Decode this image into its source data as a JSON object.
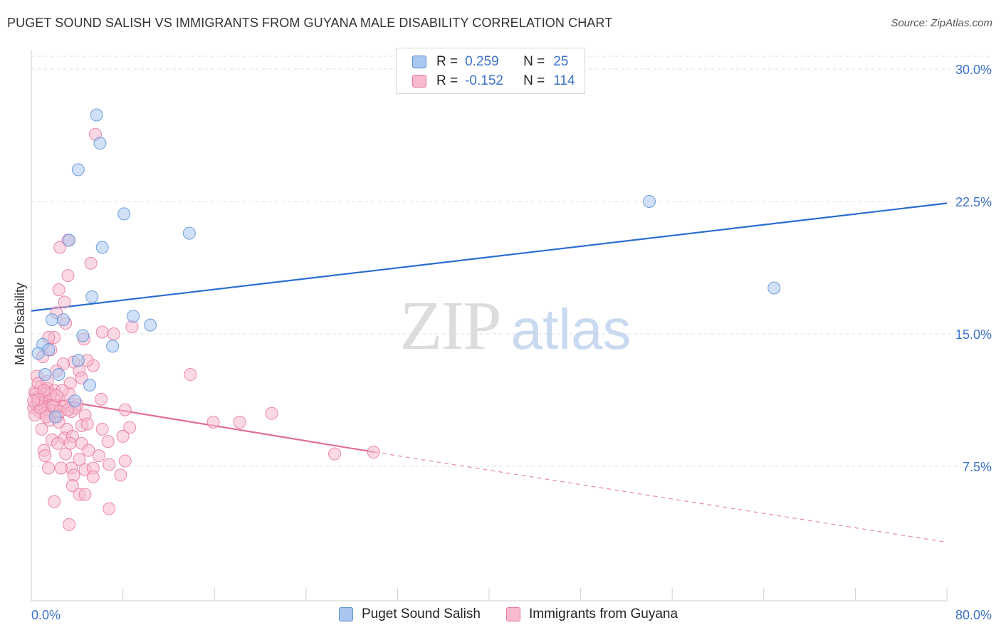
{
  "header": {
    "title": "PUGET SOUND SALISH VS IMMIGRANTS FROM GUYANA MALE DISABILITY CORRELATION CHART",
    "source": "Source: ZipAtlas.com"
  },
  "watermark": {
    "zip": "ZIP",
    "atlas": "atlas"
  },
  "legend": {
    "rows": [
      {
        "r_label": "R =",
        "r_value": "0.259",
        "n_label": "N =",
        "n_value": "25",
        "color": "#a9c6ef",
        "border": "#5b8fd6"
      },
      {
        "r_label": "R =",
        "r_value": "-0.152",
        "n_label": "N =",
        "n_value": "114",
        "color": "#f6b9cd",
        "border": "#e8779d"
      }
    ]
  },
  "chart_data": {
    "type": "scatter",
    "ylabel": "Male Disability",
    "x_ticks": [
      "0.0%",
      "80.0%"
    ],
    "y_ticks": [
      "7.5%",
      "15.0%",
      "22.5%",
      "30.0%"
    ],
    "xlim": [
      0,
      80
    ],
    "ylim": [
      0,
      30.5
    ],
    "grid": true,
    "series": [
      {
        "name": "Puget Sound Salish",
        "color": "#a9c6ef",
        "stroke": "#5b8fd6",
        "line_color": "#2a6dd0",
        "trend": {
          "x0": 0,
          "y0": 16.3,
          "x1": 80,
          "y1": 22.4,
          "dashed_to": null
        },
        "points": [
          [
            5.7,
            27.4
          ],
          [
            6.0,
            25.8
          ],
          [
            4.1,
            24.3
          ],
          [
            8.1,
            21.8
          ],
          [
            13.8,
            20.7
          ],
          [
            6.2,
            19.9
          ],
          [
            3.3,
            20.3
          ],
          [
            5.3,
            17.1
          ],
          [
            8.9,
            16.0
          ],
          [
            10.4,
            15.5
          ],
          [
            1.8,
            15.8
          ],
          [
            2.8,
            15.8
          ],
          [
            4.5,
            14.9
          ],
          [
            1.0,
            14.4
          ],
          [
            7.1,
            14.3
          ],
          [
            1.5,
            14.1
          ],
          [
            0.6,
            13.9
          ],
          [
            4.1,
            13.5
          ],
          [
            2.4,
            12.7
          ],
          [
            1.2,
            12.7
          ],
          [
            5.1,
            12.1
          ],
          [
            2.1,
            10.3
          ],
          [
            54.0,
            22.5
          ],
          [
            64.9,
            17.6
          ],
          [
            3.8,
            11.2
          ]
        ]
      },
      {
        "name": "Immigrants from Guyana",
        "color": "#f6b9cd",
        "stroke": "#e8779d",
        "line_color": "#e06e96",
        "trend": {
          "x0": 0,
          "y0": 11.5,
          "x1": 30,
          "y1": 8.3,
          "dashed_to": {
            "x": 80,
            "y": 3.2
          }
        },
        "points": [
          [
            5.6,
            26.3
          ],
          [
            3.2,
            20.3
          ],
          [
            2.5,
            19.9
          ],
          [
            5.2,
            19.0
          ],
          [
            3.2,
            18.3
          ],
          [
            2.4,
            17.5
          ],
          [
            2.9,
            16.8
          ],
          [
            2.2,
            16.2
          ],
          [
            3.0,
            15.6
          ],
          [
            8.8,
            15.4
          ],
          [
            6.2,
            15.1
          ],
          [
            7.2,
            15.0
          ],
          [
            2.0,
            14.8
          ],
          [
            1.5,
            14.8
          ],
          [
            4.6,
            14.7
          ],
          [
            1.7,
            14.1
          ],
          [
            1.0,
            13.7
          ],
          [
            3.7,
            13.4
          ],
          [
            2.8,
            13.3
          ],
          [
            5.4,
            13.2
          ],
          [
            4.9,
            13.5
          ],
          [
            2.2,
            12.9
          ],
          [
            4.2,
            12.9
          ],
          [
            0.5,
            12.6
          ],
          [
            13.9,
            12.7
          ],
          [
            4.4,
            12.5
          ],
          [
            3.4,
            12.2
          ],
          [
            0.8,
            12.0
          ],
          [
            1.4,
            11.9
          ],
          [
            2.0,
            11.8
          ],
          [
            0.3,
            11.7
          ],
          [
            1.1,
            11.6
          ],
          [
            1.6,
            11.5
          ],
          [
            0.5,
            11.4
          ],
          [
            3.3,
            11.6
          ],
          [
            0.9,
            11.3
          ],
          [
            1.3,
            11.2
          ],
          [
            0.6,
            11.1
          ],
          [
            1.8,
            11.0
          ],
          [
            2.6,
            11.0
          ],
          [
            0.4,
            11.0
          ],
          [
            1.0,
            10.9
          ],
          [
            0.2,
            10.8
          ],
          [
            1.5,
            10.8
          ],
          [
            2.1,
            10.9
          ],
          [
            6.1,
            11.3
          ],
          [
            4.0,
            11.0
          ],
          [
            2.9,
            10.9
          ],
          [
            3.5,
            10.6
          ],
          [
            0.7,
            10.6
          ],
          [
            1.2,
            10.5
          ],
          [
            8.2,
            10.7
          ],
          [
            0.3,
            10.4
          ],
          [
            2.3,
            10.3
          ],
          [
            4.7,
            10.4
          ],
          [
            1.6,
            10.1
          ],
          [
            2.4,
            10.0
          ],
          [
            15.9,
            10.0
          ],
          [
            18.2,
            10.0
          ],
          [
            21.0,
            10.5
          ],
          [
            4.4,
            9.8
          ],
          [
            8.6,
            9.7
          ],
          [
            0.9,
            9.6
          ],
          [
            6.2,
            9.6
          ],
          [
            3.1,
            9.6
          ],
          [
            2.9,
            9.1
          ],
          [
            3.6,
            9.2
          ],
          [
            8.0,
            9.2
          ],
          [
            1.8,
            9.0
          ],
          [
            6.7,
            8.9
          ],
          [
            3.4,
            8.8
          ],
          [
            2.3,
            8.8
          ],
          [
            4.4,
            8.8
          ],
          [
            5.0,
            8.4
          ],
          [
            1.1,
            8.4
          ],
          [
            5.9,
            8.1
          ],
          [
            3.0,
            8.2
          ],
          [
            1.2,
            8.1
          ],
          [
            4.2,
            7.9
          ],
          [
            26.5,
            8.2
          ],
          [
            29.9,
            8.3
          ],
          [
            6.8,
            7.6
          ],
          [
            8.2,
            7.8
          ],
          [
            1.5,
            7.4
          ],
          [
            3.5,
            7.4
          ],
          [
            4.7,
            7.3
          ],
          [
            5.4,
            7.4
          ],
          [
            2.6,
            7.4
          ],
          [
            3.7,
            7.0
          ],
          [
            5.4,
            6.9
          ],
          [
            7.8,
            7.0
          ],
          [
            3.6,
            6.4
          ],
          [
            4.2,
            5.9
          ],
          [
            4.7,
            5.9
          ],
          [
            2.0,
            5.5
          ],
          [
            6.8,
            5.1
          ],
          [
            3.3,
            4.2
          ],
          [
            0.6,
            12.2
          ],
          [
            1.4,
            12.3
          ],
          [
            2.0,
            11.3
          ],
          [
            0.8,
            10.8
          ],
          [
            1.7,
            11.6
          ],
          [
            2.7,
            11.8
          ],
          [
            0.4,
            11.6
          ],
          [
            1.1,
            11.8
          ],
          [
            1.9,
            10.9
          ],
          [
            2.5,
            10.6
          ],
          [
            0.6,
            11.3
          ],
          [
            1.3,
            10.3
          ],
          [
            3.8,
            10.8
          ],
          [
            4.9,
            9.9
          ],
          [
            3.2,
            10.7
          ],
          [
            2.2,
            11.5
          ],
          [
            0.2,
            11.2
          ]
        ]
      }
    ]
  }
}
